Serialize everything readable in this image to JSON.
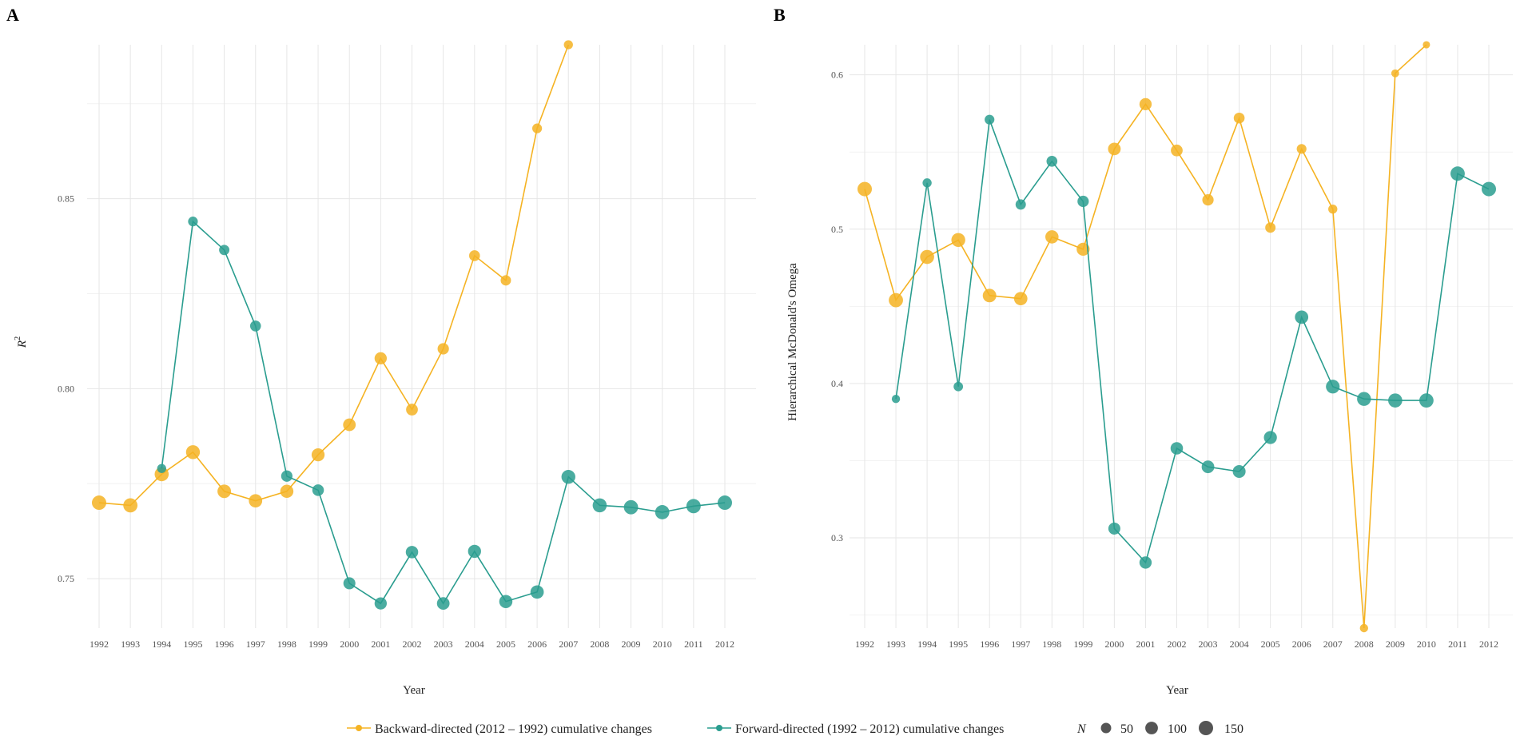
{
  "chart_data": [
    {
      "panel": "A",
      "type": "line",
      "xlabel": "Year",
      "ylabel": "R²",
      "ylabel_main": "R",
      "ylabel_sup": "2",
      "x": [
        1992,
        1993,
        1994,
        1995,
        1996,
        1997,
        1998,
        1999,
        2000,
        2001,
        2002,
        2003,
        2004,
        2005,
        2006,
        2007,
        2008,
        2009,
        2010,
        2011,
        2012
      ],
      "xticks": [
        "1992",
        "1993",
        "1994",
        "1995",
        "1996",
        "1997",
        "1998",
        "1999",
        "2000",
        "2001",
        "2002",
        "2003",
        "2004",
        "2005",
        "2006",
        "2007",
        "2008",
        "2009",
        "2010",
        "2011",
        "2012"
      ],
      "ylim": [
        0.737,
        0.8905
      ],
      "yticks": [
        0.75,
        0.8,
        0.85
      ],
      "ytick_labels": [
        "0.75",
        "0.80",
        "0.85"
      ],
      "series": [
        {
          "name": "Backward-directed (2012 – 1992) cumulative changes",
          "color": "#F5B323",
          "x": [
            1992,
            1993,
            1994,
            1995,
            1996,
            1997,
            1998,
            1999,
            2000,
            2001,
            2002,
            2003,
            2004,
            2005,
            2006,
            2007
          ],
          "values": [
            0.77,
            0.7693,
            0.7775,
            0.7833,
            0.773,
            0.7705,
            0.773,
            0.7826,
            0.7905,
            0.808,
            0.7945,
            0.8105,
            0.835,
            0.8285,
            0.8685,
            0.8905
          ],
          "n": [
            150,
            145,
            140,
            135,
            125,
            120,
            115,
            110,
            100,
            90,
            80,
            70,
            60,
            50,
            40,
            30
          ]
        },
        {
          "name": "Forward-directed (1992 – 2012) cumulative changes",
          "color": "#2A9D8F",
          "x": [
            1994,
            1995,
            1996,
            1997,
            1998,
            1999,
            2000,
            2001,
            2002,
            2003,
            2004,
            2005,
            2006,
            2007,
            2008,
            2009,
            2010,
            2011,
            2012
          ],
          "values": [
            0.779,
            0.844,
            0.8365,
            0.8165,
            0.777,
            0.7733,
            0.7488,
            0.7435,
            0.757,
            0.7435,
            0.7572,
            0.744,
            0.7465,
            0.7768,
            0.7693,
            0.7688,
            0.7675,
            0.7691,
            0.77
          ],
          "n": [
            30,
            40,
            50,
            60,
            70,
            75,
            85,
            90,
            95,
            100,
            110,
            115,
            120,
            135,
            140,
            145,
            145,
            148,
            150
          ]
        }
      ]
    },
    {
      "panel": "B",
      "type": "line",
      "xlabel": "Year",
      "ylabel": "Hierarchical McDonald's Omega",
      "x": [
        1992,
        1993,
        1994,
        1995,
        1996,
        1997,
        1998,
        1999,
        2000,
        2001,
        2002,
        2003,
        2004,
        2005,
        2006,
        2007,
        2008,
        2009,
        2010,
        2011,
        2012
      ],
      "xticks": [
        "1992",
        "1993",
        "1994",
        "1995",
        "1996",
        "1997",
        "1998",
        "1999",
        "2000",
        "2001",
        "2002",
        "2003",
        "2004",
        "2005",
        "2006",
        "2007",
        "2008",
        "2009",
        "2010",
        "2011",
        "2012"
      ],
      "ylim": [
        0.2415,
        0.6195
      ],
      "yticks": [
        0.3,
        0.4,
        0.5,
        0.6
      ],
      "ytick_labels": [
        "0.3",
        "0.4",
        "0.5",
        "0.6"
      ],
      "series": [
        {
          "name": "Backward-directed (2012 – 1992) cumulative changes",
          "color": "#F5B323",
          "x": [
            1992,
            1993,
            1994,
            1995,
            1996,
            1997,
            1998,
            1999,
            2000,
            2001,
            2002,
            2003,
            2004,
            2005,
            2006,
            2007,
            2008,
            2009,
            2010
          ],
          "values": [
            0.526,
            0.454,
            0.482,
            0.493,
            0.457,
            0.455,
            0.495,
            0.487,
            0.552,
            0.581,
            0.551,
            0.519,
            0.572,
            0.501,
            0.552,
            0.513,
            0.2415,
            0.601,
            0.6195
          ],
          "n": [
            150,
            145,
            140,
            135,
            125,
            120,
            115,
            110,
            100,
            90,
            80,
            70,
            60,
            50,
            40,
            30,
            20,
            15,
            10
          ]
        },
        {
          "name": "Forward-directed (1992 – 2012) cumulative changes",
          "color": "#2A9D8F",
          "x": [
            1993,
            1994,
            1995,
            1996,
            1997,
            1998,
            1999,
            2000,
            2001,
            2002,
            2003,
            2004,
            2005,
            2006,
            2007,
            2008,
            2009,
            2010,
            2011,
            2012
          ],
          "values": [
            0.39,
            0.53,
            0.398,
            0.571,
            0.516,
            0.544,
            0.518,
            0.306,
            0.284,
            0.358,
            0.346,
            0.343,
            0.365,
            0.443,
            0.398,
            0.39,
            0.389,
            0.389,
            0.536,
            0.526
          ],
          "n": [
            20,
            30,
            35,
            40,
            50,
            60,
            70,
            85,
            90,
            95,
            100,
            105,
            110,
            120,
            130,
            135,
            140,
            145,
            148,
            150
          ]
        }
      ]
    }
  ],
  "legend": {
    "backward_label": "Backward-directed (2012 – 1992) cumulative changes",
    "forward_label": "Forward-directed (1992 – 2012) cumulative changes",
    "size_title": "N",
    "size_values": [
      50,
      100,
      150
    ],
    "size_labels": [
      "50",
      "100",
      "150"
    ]
  },
  "colors": {
    "backward": "#F5B323",
    "forward": "#2A9D8F",
    "size_key": "#555555"
  }
}
